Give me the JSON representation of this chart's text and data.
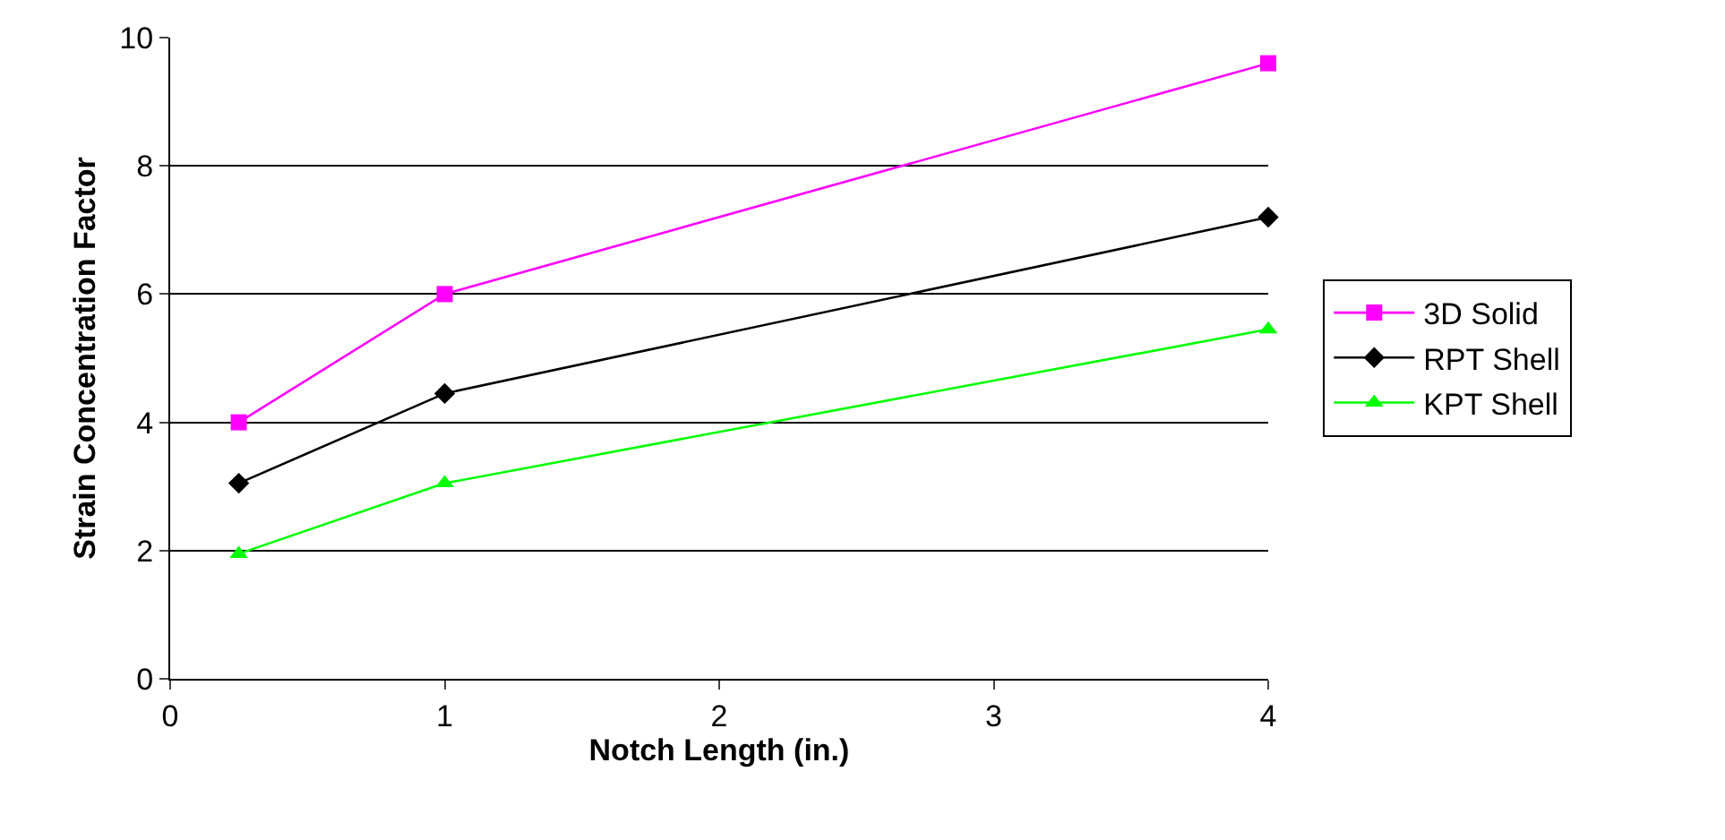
{
  "chart_data": {
    "type": "line",
    "xlabel": "Notch Length (in.)",
    "ylabel": "Strain Concentration Factor",
    "x": [
      0.25,
      1,
      4
    ],
    "series": [
      {
        "name": "3D Solid",
        "color": "#ff00ff",
        "marker": "square",
        "values": [
          4.0,
          6.0,
          9.6
        ]
      },
      {
        "name": "RPT Shell",
        "color": "#000000",
        "marker": "diamond",
        "values": [
          3.05,
          4.45,
          7.2
        ]
      },
      {
        "name": "KPT Shell",
        "color": "#00ff00",
        "marker": "triangle",
        "values": [
          1.95,
          3.05,
          5.45
        ]
      }
    ],
    "xlim": [
      0,
      4
    ],
    "xticks": [
      0,
      1,
      2,
      3,
      4
    ],
    "ylim": [
      0,
      10
    ],
    "yticks": [
      0,
      2,
      4,
      6,
      8,
      10
    ],
    "grid": "y",
    "legend": "right",
    "line_style": "solid"
  }
}
